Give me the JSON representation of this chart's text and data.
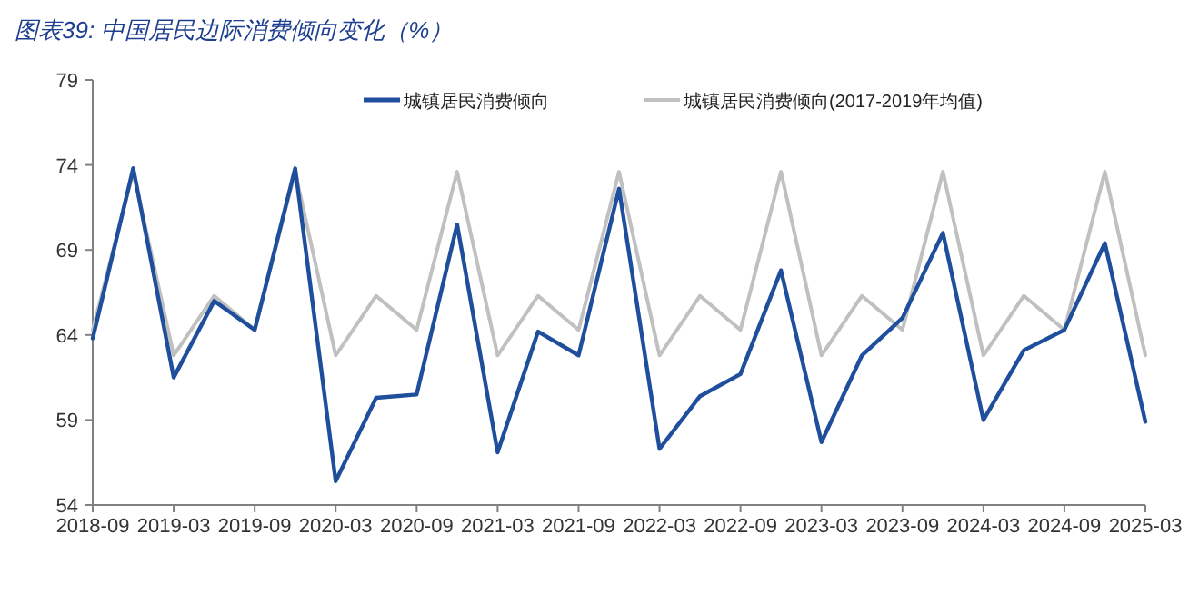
{
  "chart_data": {
    "type": "line",
    "title": "图表39:  中国居民边际消费倾向变化（%）",
    "categories": [
      "2018-09",
      null,
      "2019-03",
      null,
      "2019-09",
      null,
      "2020-03",
      null,
      "2020-09",
      null,
      "2021-03",
      null,
      "2021-09",
      null,
      "2022-03",
      null,
      "2022-09",
      null,
      "2023-03",
      null,
      "2023-09",
      null,
      "2024-03",
      null,
      "2024-09",
      null,
      "2025-03"
    ],
    "series": [
      {
        "name": "城镇居民消费倾向",
        "color": "#1f4e9c",
        "values": [
          63.8,
          73.8,
          61.5,
          66.0,
          64.3,
          73.8,
          55.4,
          60.3,
          60.5,
          70.5,
          57.1,
          64.2,
          62.8,
          72.6,
          57.3,
          60.4,
          61.7,
          67.8,
          57.7,
          62.8,
          65.0,
          70.0,
          59.0,
          63.1,
          64.3,
          69.4,
          58.9
        ]
      },
      {
        "name": "城镇居民消费倾向(2017-2019年均值)",
        "color": "#c0c0c0",
        "values": [
          64.3,
          73.6,
          62.8,
          66.3,
          64.3,
          73.6,
          62.8,
          66.3,
          64.3,
          73.6,
          62.8,
          66.3,
          64.3,
          73.6,
          62.8,
          66.3,
          64.3,
          73.6,
          62.8,
          66.3,
          64.3,
          73.6,
          62.8,
          66.3,
          64.3,
          73.6,
          62.8
        ]
      }
    ],
    "ylim": [
      54,
      79
    ],
    "yticks": [
      54,
      59,
      64,
      69,
      74,
      79
    ],
    "grid": false,
    "legend": "top",
    "marker": "none",
    "line_style": "solid"
  }
}
